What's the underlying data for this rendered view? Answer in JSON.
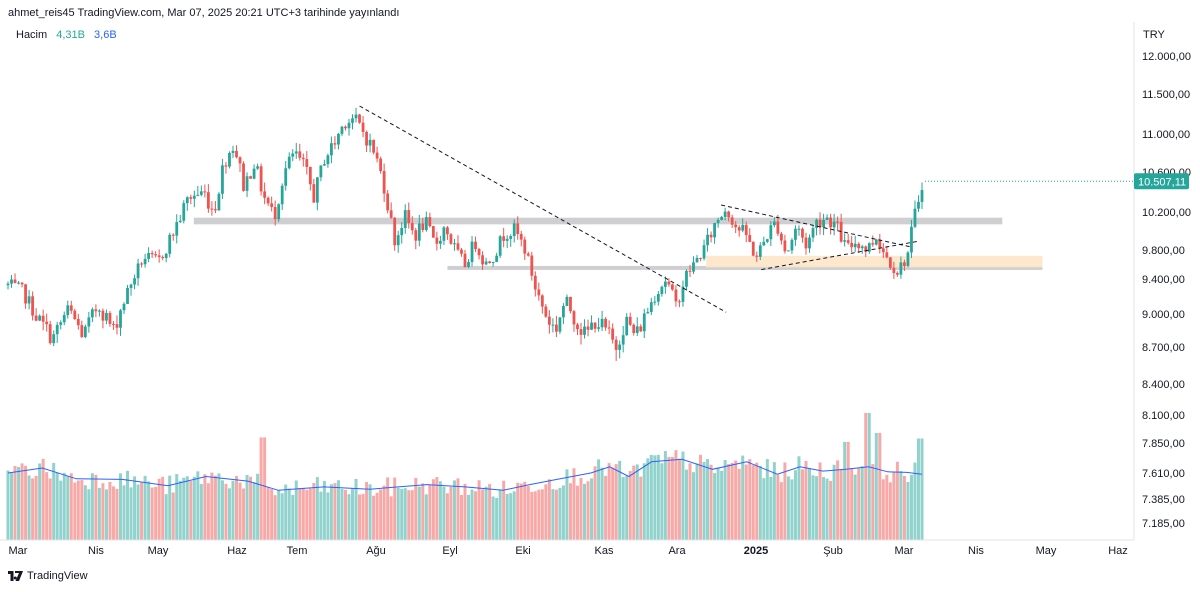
{
  "header": {
    "text": "ahmet_reis45 TradingView.com, Mar 07, 2025 20:21 UTC+3 tarihinde yayınlandı"
  },
  "legend": {
    "label": "Hacim",
    "value_a": "4,31B",
    "value_b": "3,6B"
  },
  "axis": {
    "currency": "TRY",
    "price_ticks": [
      "12.000,00",
      "11.500,00",
      "11.000,00",
      "10.600,00",
      "10.200,00",
      "9.800,00",
      "9.400,00",
      "9.000,00",
      "8.700,00",
      "8.400,00",
      "8.100,00",
      "7.850,00",
      "7.610,00",
      "7.385,00",
      "7.185,00"
    ],
    "time_ticks": [
      "Mar",
      "Nis",
      "May",
      "Haz",
      "Tem",
      "Ağu",
      "Eyl",
      "Eki",
      "Kas",
      "Ara",
      "2025",
      "Şub",
      "Mar",
      "Nis",
      "May",
      "Haz"
    ],
    "last_price": "10.507,11"
  },
  "footer": {
    "brand": "TradingView"
  },
  "colors": {
    "up": "#26a69a",
    "down": "#ef5350",
    "ma": "#2962ff",
    "zone_gray": "#cfcfd1",
    "zone_orange": "#fde5c8"
  },
  "chart_data": {
    "type": "candlestick",
    "price_scale": {
      "ticks": [
        12000,
        11500,
        11000,
        10600,
        10200,
        9800,
        9400,
        9000,
        8700,
        8400,
        8100,
        7850,
        7610,
        7385,
        7185
      ],
      "last": 10507.11
    },
    "time_axis": [
      "Mar",
      "Nis",
      "May",
      "Haz",
      "Tem",
      "Ağu",
      "Eyl",
      "Eki",
      "Kas",
      "Ara",
      "2025",
      "Şub",
      "Mar",
      "Nis",
      "May",
      "Haz"
    ],
    "close_path": [
      [
        0,
        9330
      ],
      [
        6,
        9250
      ],
      [
        12,
        8950
      ],
      [
        18,
        8780
      ],
      [
        24,
        9050
      ],
      [
        30,
        8800
      ],
      [
        36,
        9100
      ],
      [
        42,
        8850
      ],
      [
        48,
        9280
      ],
      [
        54,
        9700
      ],
      [
        60,
        9650
      ],
      [
        66,
        10000
      ],
      [
        72,
        10350
      ],
      [
        78,
        10400
      ],
      [
        82,
        10200
      ],
      [
        86,
        10700
      ],
      [
        90,
        10900
      ],
      [
        94,
        10450
      ],
      [
        98,
        10700
      ],
      [
        102,
        10350
      ],
      [
        106,
        10150
      ],
      [
        110,
        10600
      ],
      [
        114,
        10800
      ],
      [
        118,
        10650
      ],
      [
        122,
        10350
      ],
      [
        126,
        10750
      ],
      [
        130,
        10900
      ],
      [
        134,
        11150
      ],
      [
        138,
        11200
      ],
      [
        142,
        11000
      ],
      [
        146,
        10800
      ],
      [
        150,
        10450
      ],
      [
        154,
        9900
      ],
      [
        158,
        10150
      ],
      [
        162,
        9950
      ],
      [
        166,
        10100
      ],
      [
        170,
        9850
      ],
      [
        174,
        10050
      ],
      [
        178,
        9800
      ],
      [
        182,
        9600
      ],
      [
        186,
        9900
      ],
      [
        190,
        9600
      ],
      [
        194,
        9750
      ],
      [
        198,
        10000
      ],
      [
        202,
        10000
      ],
      [
        206,
        9800
      ],
      [
        210,
        9300
      ],
      [
        214,
        9000
      ],
      [
        218,
        8850
      ],
      [
        222,
        9150
      ],
      [
        226,
        8950
      ],
      [
        230,
        8800
      ],
      [
        234,
        8950
      ],
      [
        238,
        8850
      ],
      [
        242,
        8700
      ],
      [
        246,
        8950
      ],
      [
        250,
        8800
      ],
      [
        254,
        9000
      ],
      [
        258,
        9250
      ],
      [
        262,
        9400
      ],
      [
        266,
        9100
      ],
      [
        270,
        9450
      ],
      [
        274,
        9650
      ],
      [
        278,
        9850
      ],
      [
        282,
        10100
      ],
      [
        286,
        10250
      ],
      [
        290,
        10050
      ],
      [
        294,
        9950
      ],
      [
        298,
        9700
      ],
      [
        302,
        9950
      ],
      [
        306,
        10100
      ],
      [
        310,
        9750
      ],
      [
        314,
        10050
      ],
      [
        318,
        9850
      ],
      [
        322,
        10100
      ],
      [
        326,
        10150
      ],
      [
        330,
        10050
      ],
      [
        334,
        9800
      ],
      [
        338,
        9900
      ],
      [
        342,
        9800
      ],
      [
        346,
        9950
      ],
      [
        350,
        9700
      ],
      [
        354,
        9500
      ],
      [
        358,
        9700
      ],
      [
        361,
        10150
      ],
      [
        364,
        10500
      ]
    ],
    "time_span_days": 364,
    "volume_ma_path": [
      [
        0,
        7610
      ],
      [
        18,
        7650
      ],
      [
        36,
        7560
      ],
      [
        60,
        7555
      ],
      [
        84,
        7500
      ],
      [
        104,
        7580
      ],
      [
        126,
        7540
      ],
      [
        142,
        7460
      ],
      [
        166,
        7490
      ],
      [
        190,
        7470
      ],
      [
        220,
        7510
      ],
      [
        240,
        7490
      ],
      [
        260,
        7460
      ],
      [
        274,
        7510
      ],
      [
        290,
        7560
      ],
      [
        306,
        7610
      ],
      [
        316,
        7660
      ],
      [
        326,
        7580
      ],
      [
        338,
        7700
      ],
      [
        354,
        7720
      ],
      [
        370,
        7640
      ],
      [
        388,
        7700
      ],
      [
        404,
        7600
      ],
      [
        416,
        7660
      ],
      [
        428,
        7625
      ],
      [
        440,
        7640
      ],
      [
        452,
        7660
      ],
      [
        462,
        7620
      ],
      [
        472,
        7615
      ],
      [
        480,
        7600
      ]
    ],
    "volume_ma_span": 480,
    "volume_spikes": [
      [
        102,
        7900
      ],
      [
        334,
        7860
      ],
      [
        342,
        8120
      ],
      [
        346,
        7940
      ],
      [
        364,
        7890
      ]
    ],
    "trend_lines": [
      {
        "style": "dashed",
        "from": [
          140,
          11350
        ],
        "to": [
          286,
          9020
        ]
      },
      {
        "style": "dashed",
        "from": [
          284,
          10270
        ],
        "to": [
          360,
          9830
        ]
      },
      {
        "style": "dashed",
        "from": [
          300,
          9530
        ],
        "to": [
          362,
          9890
        ]
      }
    ],
    "zones": [
      {
        "color": "gray",
        "start": 74,
        "end": 396,
        "low": 10070,
        "high": 10140
      },
      {
        "color": "gray",
        "start": 175,
        "end": 412,
        "low": 9525,
        "high": 9580
      },
      {
        "color": "orange",
        "start": 278,
        "end": 412,
        "low": 9560,
        "high": 9720
      }
    ]
  }
}
